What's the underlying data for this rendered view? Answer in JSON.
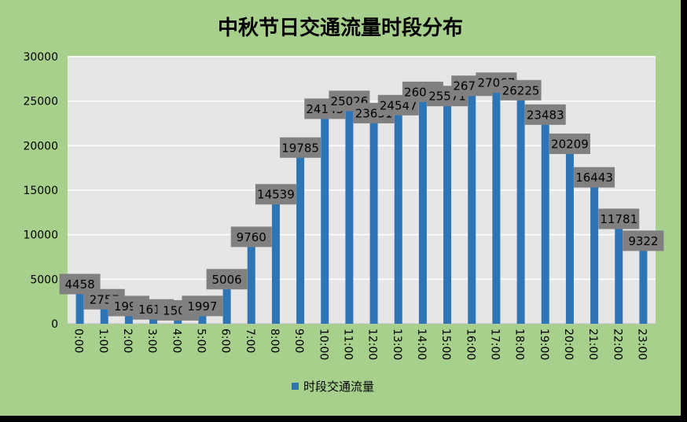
{
  "chart_data": {
    "type": "bar",
    "title": "中秋节日交通流量时段分布",
    "xlabel": "",
    "ylabel": "",
    "ylim": [
      0,
      30000
    ],
    "yticks": [
      0,
      5000,
      10000,
      15000,
      20000,
      25000,
      30000
    ],
    "grid": true,
    "legend_position": "bottom",
    "categories": [
      "0:00",
      "1:00",
      "2:00",
      "3:00",
      "4:00",
      "5:00",
      "6:00",
      "7:00",
      "8:00",
      "9:00",
      "10:00",
      "11:00",
      "12:00",
      "13:00",
      "14:00",
      "15:00",
      "16:00",
      "17:00",
      "18:00",
      "19:00",
      "20:00",
      "21:00",
      "22:00",
      "23:00"
    ],
    "series": [
      {
        "name": "时段交通流量",
        "values": [
          4458,
          2757,
          1991,
          1613,
          1505,
          1997,
          5006,
          9760,
          14539,
          19785,
          24143,
          25026,
          23651,
          24547,
          26037,
          25571,
          26719,
          27067,
          26225,
          23483,
          20209,
          16443,
          11781,
          9322
        ]
      }
    ],
    "colors": {
      "bar": "#2e75b6",
      "plot_background": "#e7e6e6",
      "chart_background": "#a8d08d",
      "frame": "#000000",
      "data_label_box": "#808080",
      "gridline": "#ffffff"
    }
  }
}
